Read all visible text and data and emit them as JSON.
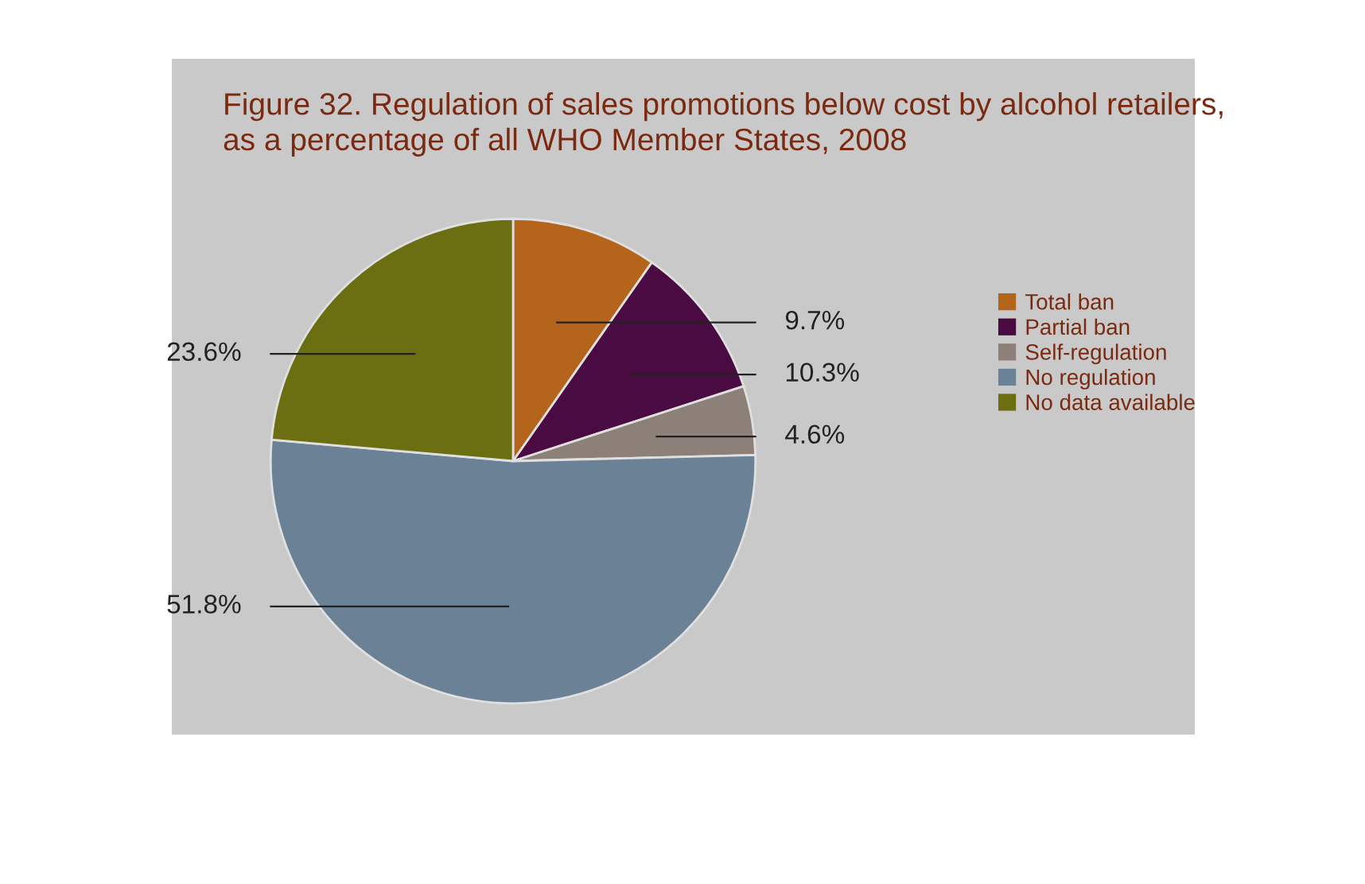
{
  "chart_data": {
    "type": "pie",
    "title": "Figure 32. Regulation of sales promotions below cost by alcohol retailers,\nas a percentage of all WHO Member States, 2008",
    "categories": [
      "Total ban",
      "Partial ban",
      "Self-regulation",
      "No regulation",
      "No data available"
    ],
    "values": [
      9.7,
      10.3,
      4.6,
      51.8,
      23.6
    ],
    "colors": [
      "#b5641c",
      "#4a0a42",
      "#8c8078",
      "#6b8296",
      "#6c6e12"
    ],
    "value_labels": [
      "9.7%",
      "10.3%",
      "4.6%",
      "51.8%",
      "23.6%"
    ],
    "legend": "right"
  }
}
